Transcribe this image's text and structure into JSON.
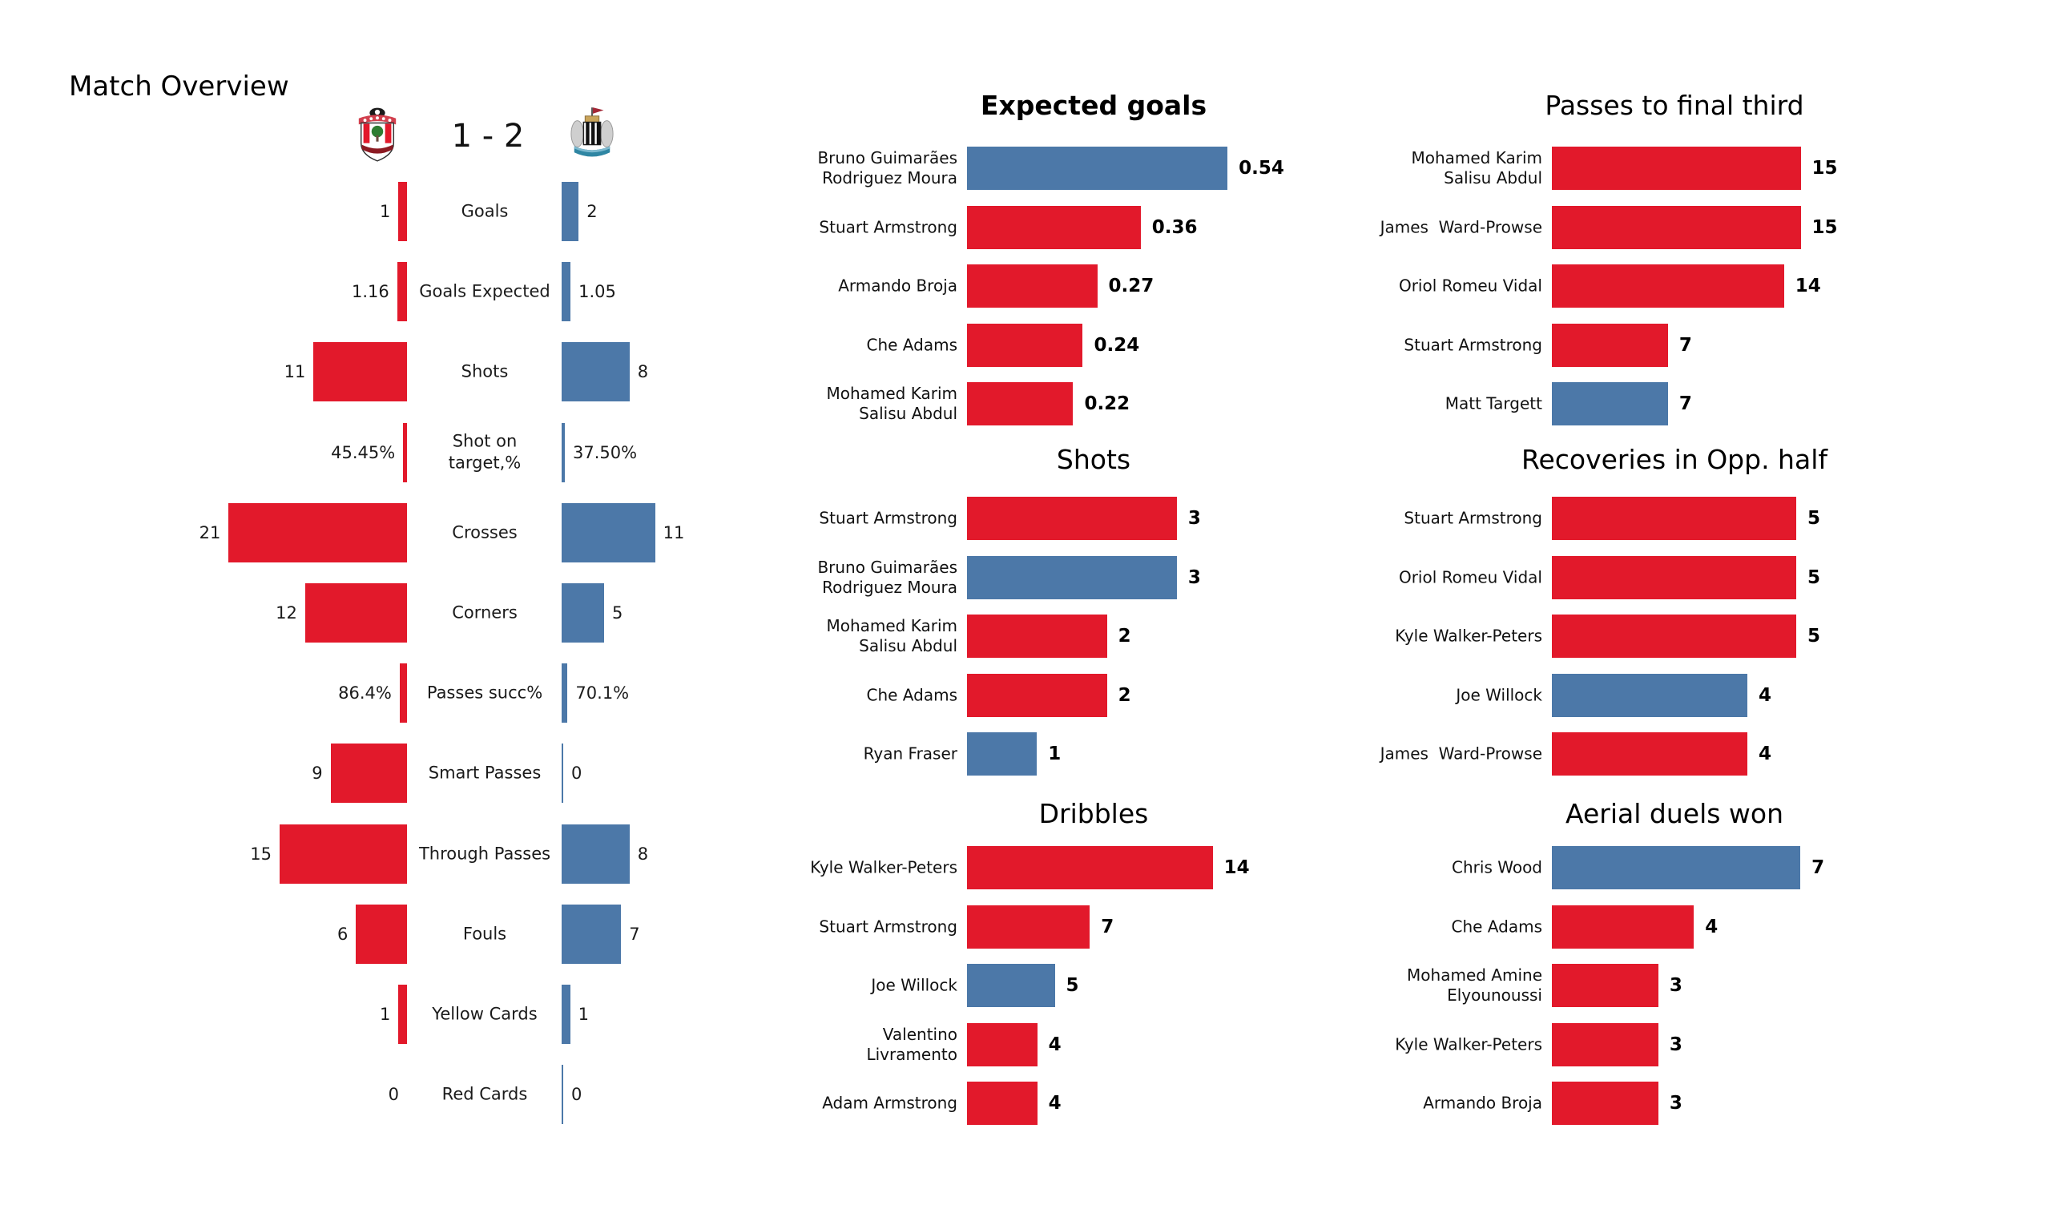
{
  "header": {
    "title": "Match Overview",
    "score": "1 - 2",
    "home_crest_icon": "southampton-crest",
    "away_crest_icon": "newcastle-crest"
  },
  "colors": {
    "home": "#e2192b",
    "away": "#4c78a8"
  },
  "chart_data": [
    {
      "type": "bar",
      "name": "team-comparison",
      "orientation": "horizontal-diverging",
      "categories": [
        "Goals",
        "Goals Expected",
        "Shots",
        "Shot on\ntarget,%",
        "Crosses",
        "Corners",
        "Passes succ%",
        "Smart Passes",
        "Through Passes",
        "Fouls",
        "Yellow Cards",
        "Red Cards"
      ],
      "series": [
        {
          "name": "home",
          "values": [
            "1",
            "1.16",
            "11",
            "45.45%",
            "21",
            "12",
            "86.4%",
            "9",
            "15",
            "6",
            "1",
            "0"
          ]
        },
        {
          "name": "away",
          "values": [
            "2",
            "1.05",
            "8",
            "37.50%",
            "11",
            "5",
            "70.1%",
            "0",
            "8",
            "7",
            "1",
            "0"
          ]
        }
      ]
    },
    {
      "type": "bar",
      "title": "Expected goals",
      "title_bold": true,
      "orientation": "horizontal",
      "rows": [
        {
          "player": "Bruno Guimarães\nRodriguez Moura",
          "value": "0.54",
          "team": "away"
        },
        {
          "player": "Stuart Armstrong",
          "value": "0.36",
          "team": "home"
        },
        {
          "player": "Armando Broja",
          "value": "0.27",
          "team": "home"
        },
        {
          "player": "Che Adams",
          "value": "0.24",
          "team": "home"
        },
        {
          "player": "Mohamed Karim\nSalisu Abdul",
          "value": "0.22",
          "team": "home"
        }
      ]
    },
    {
      "type": "bar",
      "title": "Shots",
      "title_bold": false,
      "orientation": "horizontal",
      "rows": [
        {
          "player": "Stuart Armstrong",
          "value": "3",
          "team": "home"
        },
        {
          "player": "Bruno Guimarães\nRodriguez Moura",
          "value": "3",
          "team": "away"
        },
        {
          "player": "Mohamed Karim\nSalisu Abdul",
          "value": "2",
          "team": "home"
        },
        {
          "player": "Che Adams",
          "value": "2",
          "team": "home"
        },
        {
          "player": "Ryan Fraser",
          "value": "1",
          "team": "away"
        }
      ]
    },
    {
      "type": "bar",
      "title": "Dribbles",
      "title_bold": false,
      "orientation": "horizontal",
      "rows": [
        {
          "player": "Kyle Walker-Peters",
          "value": "14",
          "team": "home"
        },
        {
          "player": "Stuart Armstrong",
          "value": "7",
          "team": "home"
        },
        {
          "player": "Joe Willock",
          "value": "5",
          "team": "away"
        },
        {
          "player": "Valentino\nLivramento",
          "value": "4",
          "team": "home"
        },
        {
          "player": "Adam Armstrong",
          "value": "4",
          "team": "home"
        }
      ]
    },
    {
      "type": "bar",
      "title": "Passes to final third",
      "title_bold": false,
      "orientation": "horizontal",
      "rows": [
        {
          "player": "Mohamed Karim\nSalisu Abdul",
          "value": "15",
          "team": "home"
        },
        {
          "player": "James  Ward-Prowse",
          "value": "15",
          "team": "home"
        },
        {
          "player": "Oriol Romeu Vidal",
          "value": "14",
          "team": "home"
        },
        {
          "player": "Stuart Armstrong",
          "value": "7",
          "team": "home"
        },
        {
          "player": "Matt Targett",
          "value": "7",
          "team": "away"
        }
      ]
    },
    {
      "type": "bar",
      "title": "Recoveries in Opp. half",
      "title_bold": false,
      "orientation": "horizontal",
      "rows": [
        {
          "player": "Stuart Armstrong",
          "value": "5",
          "team": "home"
        },
        {
          "player": "Oriol Romeu Vidal",
          "value": "5",
          "team": "home"
        },
        {
          "player": "Kyle Walker-Peters",
          "value": "5",
          "team": "home"
        },
        {
          "player": "Joe Willock",
          "value": "4",
          "team": "away"
        },
        {
          "player": "James  Ward-Prowse",
          "value": "4",
          "team": "home"
        }
      ]
    },
    {
      "type": "bar",
      "title": "Aerial duels won",
      "title_bold": false,
      "orientation": "horizontal",
      "rows": [
        {
          "player": "Chris Wood",
          "value": "7",
          "team": "away"
        },
        {
          "player": "Che Adams",
          "value": "4",
          "team": "home"
        },
        {
          "player": "Mohamed Amine\nElyounoussi",
          "value": "3",
          "team": "home"
        },
        {
          "player": "Kyle Walker-Peters",
          "value": "3",
          "team": "home"
        },
        {
          "player": "Armando Broja",
          "value": "3",
          "team": "home"
        }
      ]
    }
  ]
}
